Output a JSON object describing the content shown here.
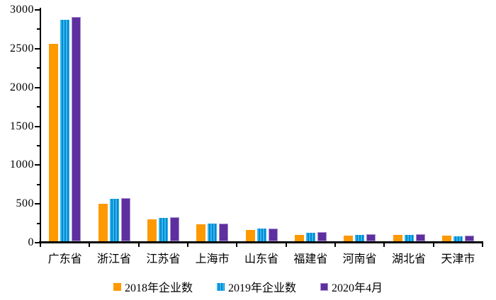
{
  "chart": {
    "background_color": "#ffffff",
    "axis_color": "#000000",
    "series_colors": {
      "s2018": "#FF9900",
      "s2019_light": "#33B9F0",
      "s2019_dark": "#0886CE",
      "s2020_fill": "#5E2F9E",
      "s2020_border": "#A78FD2"
    }
  },
  "chart_data": {
    "type": "bar",
    "title": "",
    "xlabel": "",
    "ylabel": "",
    "categories": [
      "广东省",
      "浙江省",
      "江苏省",
      "上海市",
      "山东省",
      "福建省",
      "河南省",
      "湖北省",
      "天津市"
    ],
    "series": [
      {
        "name": "2018年企业数",
        "pattern": "solid-orange",
        "values": [
          2540,
          480,
          280,
          220,
          150,
          85,
          70,
          78,
          70
        ]
      },
      {
        "name": "2019年企业数",
        "pattern": "striped-blue",
        "values": [
          2850,
          550,
          300,
          230,
          163,
          105,
          78,
          85,
          62
        ]
      },
      {
        "name": "2020年4月",
        "pattern": "solid-purple",
        "values": [
          2890,
          560,
          310,
          226,
          168,
          115,
          88,
          88,
          75
        ]
      }
    ],
    "ylim": [
      0,
      3000
    ],
    "yticks": [
      0,
      500,
      1000,
      1500,
      2000,
      2500,
      3000
    ],
    "minor_tick_step": 250,
    "grid": false,
    "legend_position": "bottom"
  }
}
